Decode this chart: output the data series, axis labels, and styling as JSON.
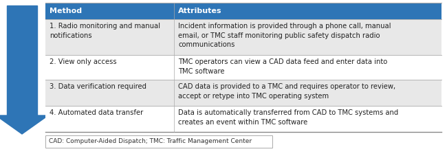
{
  "header": [
    "Method",
    "Attributes"
  ],
  "header_bg": "#2E75B6",
  "header_text_color": "#FFFFFF",
  "row_bg_odd": "#E8E8E8",
  "row_bg_even": "#FFFFFF",
  "border_color": "#AAAAAA",
  "rows": [
    {
      "method": "1. Radio monitoring and manual\nnotifications",
      "attribute": "Incident information is provided through a phone call, manual\nemail, or TMC staff monitoring public safety dispatch radio\ncommunications"
    },
    {
      "method": "2. View only access",
      "attribute": "TMC operators can view a CAD data feed and enter data into\nTMC software"
    },
    {
      "method": "3. Data verification required",
      "attribute": "CAD data is provided to a TMC and requires operator to review,\naccept or retype into TMC operating system"
    },
    {
      "method": "4. Automated data transfer",
      "attribute": "Data is automatically transferred from CAD to TMC systems and\ncreates an event within TMC software"
    }
  ],
  "footnote": "CAD: Computer-Aided Dispatch; TMC: Traffic Management Center",
  "arrow_color": "#2E75B6",
  "arrow_dark": "#1A5B9A",
  "fig_bg": "#FFFFFF",
  "font_size": 7.2,
  "header_font_size": 8.0,
  "footnote_font_size": 6.5
}
